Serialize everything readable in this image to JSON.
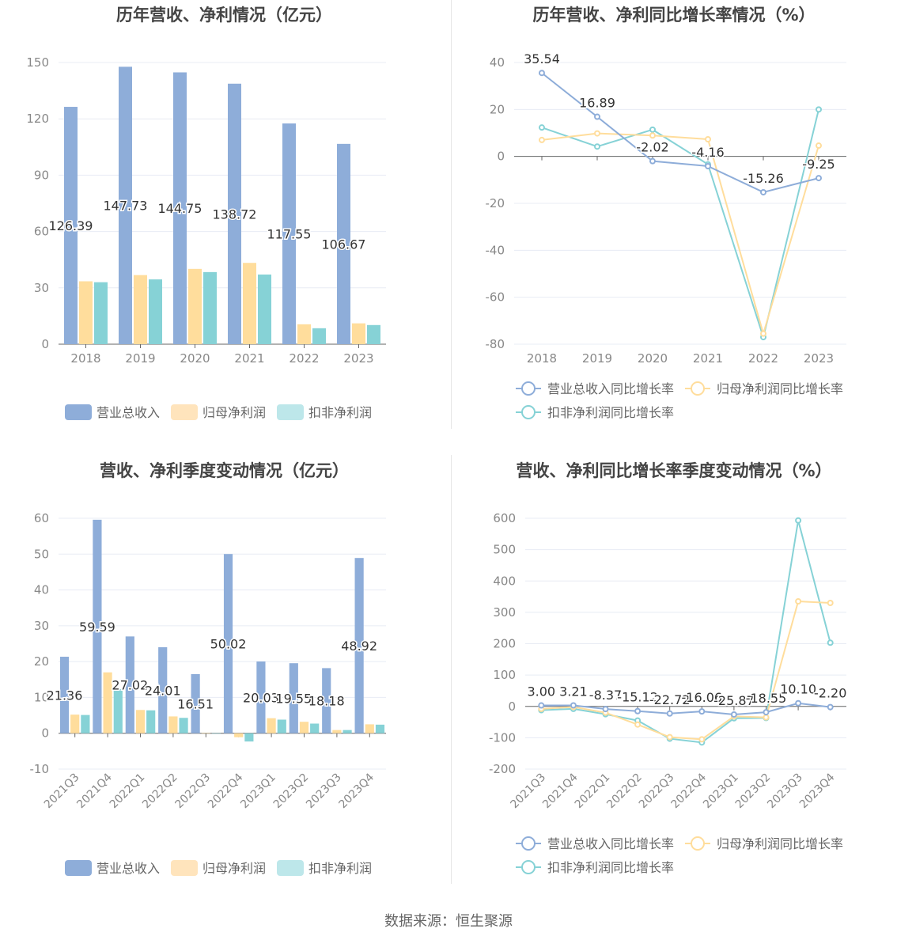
{
  "colors": {
    "revenue": "#8eadd9",
    "net_profit": "#ffdd9c",
    "deducted_net_profit": "#86d2d6",
    "revenue_legend": "#8eadd9",
    "net_profit_legend": "#ffe4bc",
    "deducted_legend": "#bde7ea",
    "grid": "#e8ecf4",
    "axis_text": "#888888",
    "title": "#444444"
  },
  "source": "数据来源：恒生聚源",
  "chart_data": [
    {
      "type": "bar",
      "title": "历年营收、净利情况（亿元）",
      "categories": [
        "2018",
        "2019",
        "2020",
        "2021",
        "2022",
        "2023"
      ],
      "ylim": [
        0,
        150
      ],
      "yticks": [
        "0",
        "30",
        "60",
        "90",
        "120",
        "150"
      ],
      "series": [
        {
          "name": "营业总收入",
          "values": [
            126.39,
            147.73,
            144.75,
            138.72,
            117.55,
            106.67
          ],
          "labels": [
            "126.39",
            "147.73",
            "144.75",
            "138.72",
            "117.55",
            "106.67"
          ]
        },
        {
          "name": "归母净利润",
          "values": [
            33.5,
            36.8,
            40.1,
            43.3,
            10.6,
            11.1
          ]
        },
        {
          "name": "扣非净利润",
          "values": [
            33.0,
            34.5,
            38.4,
            37.1,
            8.5,
            10.2
          ]
        }
      ],
      "grid": true,
      "legend": "bottom"
    },
    {
      "type": "line",
      "title": "历年营收、净利同比增长率情况（%）",
      "categories": [
        "2018",
        "2019",
        "2020",
        "2021",
        "2022",
        "2023"
      ],
      "ylim": [
        -80,
        40
      ],
      "yticks": [
        "-80",
        "-60",
        "-40",
        "-20",
        "0",
        "20",
        "40"
      ],
      "series": [
        {
          "name": "营业总收入同比增长率",
          "values": [
            35.54,
            16.89,
            -2.02,
            -4.16,
            -15.26,
            -9.25
          ],
          "labels": [
            "35.54",
            "16.89",
            "-2.02",
            "-4.16",
            "-15.26",
            "-9.25"
          ]
        },
        {
          "name": "归母净利润同比增长率",
          "values": [
            7.0,
            9.8,
            8.9,
            7.3,
            -75.5,
            4.6
          ]
        },
        {
          "name": "扣非净利润同比增长率",
          "values": [
            12.3,
            4.2,
            11.4,
            -3.4,
            -77.0,
            20.0
          ]
        }
      ],
      "grid": true,
      "legend": "bottom"
    },
    {
      "type": "bar",
      "title": "营收、净利季度变动情况（亿元）",
      "categories": [
        "2021Q3",
        "2021Q4",
        "2022Q1",
        "2022Q2",
        "2022Q3",
        "2022Q4",
        "2023Q1",
        "2023Q2",
        "2023Q3",
        "2023Q4"
      ],
      "ylim": [
        -10,
        60
      ],
      "yticks": [
        "-10",
        "0",
        "10",
        "20",
        "30",
        "40",
        "50",
        "60"
      ],
      "series": [
        {
          "name": "营业总收入",
          "values": [
            21.36,
            59.59,
            27.02,
            24.01,
            16.51,
            50.02,
            20.03,
            19.55,
            18.18,
            48.92
          ],
          "labels": [
            "21.36",
            "59.59",
            "27.02",
            "24.01",
            "16.51",
            "50.02",
            "20.03",
            "19.55",
            "18.18",
            "48.92"
          ]
        },
        {
          "name": "归母净利润",
          "values": [
            5.2,
            17.0,
            6.5,
            4.7,
            0.1,
            -1.1,
            4.2,
            3.2,
            0.9,
            2.5
          ]
        },
        {
          "name": "扣非净利润",
          "values": [
            5.1,
            12.3,
            6.4,
            4.3,
            0.0,
            -2.3,
            3.8,
            2.7,
            0.9,
            2.4
          ]
        }
      ],
      "grid": true,
      "legend": "bottom"
    },
    {
      "type": "line",
      "title": "营收、净利同比增长率季度变动情况（%）",
      "categories": [
        "2021Q3",
        "2021Q4",
        "2022Q1",
        "2022Q2",
        "2022Q3",
        "2022Q4",
        "2023Q1",
        "2023Q2",
        "2023Q3",
        "2023Q4"
      ],
      "ylim": [
        -200,
        600
      ],
      "yticks": [
        "-200",
        "-100",
        "0",
        "100",
        "200",
        "300",
        "400",
        "500",
        "600"
      ],
      "series": [
        {
          "name": "营业总收入同比增长率",
          "values": [
            3.0,
            3.21,
            -8.37,
            -15.12,
            -22.72,
            -16.06,
            -25.87,
            -18.55,
            10.1,
            -2.2
          ],
          "labels": [
            "3.00",
            "3.21",
            "-8.37",
            "-15.12",
            "-22.72",
            "-16.06",
            "-25.87",
            "-18.55",
            "10.10",
            "-2.20"
          ]
        },
        {
          "name": "归母净利润同比增长率",
          "values": [
            -8,
            -2,
            -20,
            -58,
            -98,
            -105,
            -32,
            -35,
            335,
            330
          ]
        },
        {
          "name": "扣非净利润同比增长率",
          "values": [
            -12,
            -8,
            -25,
            -45,
            -103,
            -115,
            -38,
            -37,
            593,
            203
          ]
        }
      ],
      "grid": true,
      "legend": "bottom"
    }
  ]
}
